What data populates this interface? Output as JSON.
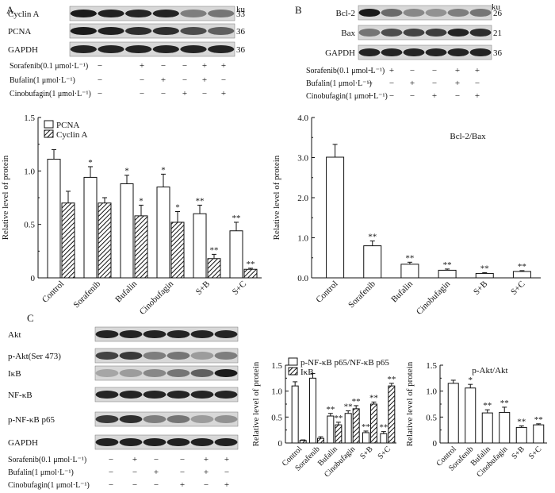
{
  "panels": {
    "A": {
      "letter": "A",
      "unit": "ku",
      "blots": [
        {
          "label": "Cyclin A",
          "size": "33"
        },
        {
          "label": "PCNA",
          "size": "36"
        },
        {
          "label": "GAPDH",
          "size": "36"
        }
      ],
      "treatments": [
        {
          "label": "Sorafenib(0.1 μmol·L⁻¹)",
          "marks": [
            "−",
            "+",
            "−",
            "−",
            "+",
            "+"
          ]
        },
        {
          "label": "Bufalin(1 μmol·L⁻¹)",
          "marks": [
            "−",
            "−",
            "+",
            "−",
            "+",
            "−"
          ]
        },
        {
          "label": "Cinobufagin(1 μmol·L⁻¹)",
          "marks": [
            "−",
            "−",
            "−",
            "+",
            "−",
            "+"
          ]
        }
      ]
    },
    "B": {
      "letter": "B",
      "unit": "ku",
      "blots": [
        {
          "label": "Bcl-2",
          "size": "26"
        },
        {
          "label": "Bax",
          "size": "21"
        },
        {
          "label": "GAPDH",
          "size": "36"
        }
      ],
      "treatments": [
        {
          "label": "Sorafenib(0.1 μmol·L⁻¹)",
          "marks": [
            "−",
            "+",
            "−",
            "−",
            "+",
            "+"
          ]
        },
        {
          "label": "Bufalin(1 μmol·L⁻¹)",
          "marks": [
            "−",
            "−",
            "+",
            "−",
            "+",
            "−"
          ]
        },
        {
          "label": "Cinobufagin(1 μmol·L⁻¹)",
          "marks": [
            "−",
            "−",
            "−",
            "+",
            "−",
            "+"
          ]
        }
      ]
    },
    "C": {
      "letter": "C",
      "blots": [
        {
          "label": "Akt"
        },
        {
          "label": "p-Akt(Ser 473)"
        },
        {
          "label": "IκB"
        },
        {
          "label": "NF-κB"
        },
        {
          "label": "p-NF-κB p65"
        },
        {
          "label": "GAPDH"
        }
      ],
      "treatments": [
        {
          "label": "Sorafenib(0.1 μmol·L⁻¹)",
          "marks": [
            "−",
            "+",
            "−",
            "−",
            "+",
            "+"
          ]
        },
        {
          "label": "Bufalin(1 μmol·L⁻¹)",
          "marks": [
            "−",
            "−",
            "+",
            "−",
            "+",
            "−"
          ]
        },
        {
          "label": "Cinobufagin(1 μmol·L⁻¹)",
          "marks": [
            "−",
            "−",
            "−",
            "+",
            "−",
            "+"
          ]
        }
      ]
    }
  },
  "chart_data": [
    {
      "id": "chartA",
      "type": "bar",
      "title": "",
      "xlabel": "",
      "ylabel": "Relative level of protein",
      "ylim": [
        0,
        1.5
      ],
      "yticks": [
        "0",
        "0.5",
        "1.0",
        "1.5"
      ],
      "categories": [
        "Control",
        "Sorafenib",
        "Bufalin",
        "Cinobufagin",
        "S+B",
        "S+C"
      ],
      "legend_position": "top-left",
      "series": [
        {
          "name": "PCNA",
          "fill": "white",
          "values": [
            1.11,
            0.94,
            0.88,
            0.85,
            0.6,
            0.44
          ],
          "errors": [
            0.09,
            0.1,
            0.08,
            0.12,
            0.08,
            0.08
          ],
          "annotations": [
            "",
            "*",
            "*",
            "*",
            "**",
            "**"
          ]
        },
        {
          "name": "Cyclin A",
          "fill": "hatch",
          "values": [
            0.7,
            0.7,
            0.58,
            0.52,
            0.18,
            0.08
          ],
          "errors": [
            0.11,
            0.05,
            0.1,
            0.1,
            0.04,
            0.01
          ],
          "annotations": [
            "",
            "",
            "*",
            "*",
            "**",
            "**"
          ]
        }
      ]
    },
    {
      "id": "chartB",
      "type": "bar",
      "title": "Bcl-2/Bax",
      "xlabel": "",
      "ylabel": "Relative level of protein",
      "ylim": [
        0,
        4.0
      ],
      "yticks": [
        "0.0",
        "1.0",
        "2.0",
        "3.0",
        "4.0"
      ],
      "categories": [
        "Control",
        "Sorafenib",
        "Bufalin",
        "Cinobufagin",
        "S+B",
        "S+C"
      ],
      "series": [
        {
          "name": "Bcl-2/Bax",
          "fill": "white",
          "values": [
            3.01,
            0.8,
            0.34,
            0.19,
            0.11,
            0.16
          ],
          "errors": [
            0.32,
            0.12,
            0.05,
            0.03,
            0.02,
            0.02
          ],
          "annotations": [
            "",
            "**",
            "**",
            "**",
            "**",
            "**"
          ]
        }
      ]
    },
    {
      "id": "chartC1",
      "type": "bar",
      "title": "",
      "xlabel": "",
      "ylabel": "Relative level of protein",
      "ylim": [
        0,
        1.5
      ],
      "yticks": [
        "0",
        "0.5",
        "1.0",
        "1.5"
      ],
      "categories": [
        "Control",
        "Sorafenib",
        "Bufalin",
        "Cinobufagin",
        "S+B",
        "S+C"
      ],
      "legend_position": "top-left",
      "series": [
        {
          "name": "p-NF-κB p65/NF-κB p65",
          "fill": "white",
          "values": [
            1.1,
            1.25,
            0.52,
            0.57,
            0.2,
            0.18
          ],
          "errors": [
            0.08,
            0.09,
            0.05,
            0.05,
            0.03,
            0.04
          ],
          "annotations": [
            "",
            "",
            "**",
            "**",
            "**",
            "**"
          ]
        },
        {
          "name": "IκB",
          "fill": "hatch",
          "values": [
            0.05,
            0.09,
            0.35,
            0.66,
            0.75,
            1.1
          ],
          "errors": [
            0.01,
            0.03,
            0.05,
            0.06,
            0.04,
            0.05
          ],
          "annotations": [
            "",
            "",
            "**",
            "**",
            "**",
            "**"
          ]
        }
      ]
    },
    {
      "id": "chartC2",
      "type": "bar",
      "title": "p-Akt/Akt",
      "xlabel": "",
      "ylabel": "Relative level of protein",
      "ylim": [
        0,
        1.5
      ],
      "yticks": [
        "0",
        "0.5",
        "1.0",
        "1.5"
      ],
      "categories": [
        "Control",
        "Sorafenib",
        "Bufalin",
        "Cinobufagin",
        "S+B",
        "S+C"
      ],
      "series": [
        {
          "name": "p-Akt/Akt",
          "fill": "white",
          "values": [
            1.15,
            1.06,
            0.58,
            0.59,
            0.3,
            0.35
          ],
          "errors": [
            0.06,
            0.07,
            0.06,
            0.1,
            0.03,
            0.02
          ],
          "annotations": [
            "",
            "*",
            "**",
            "**",
            "**",
            "**"
          ]
        }
      ]
    }
  ]
}
